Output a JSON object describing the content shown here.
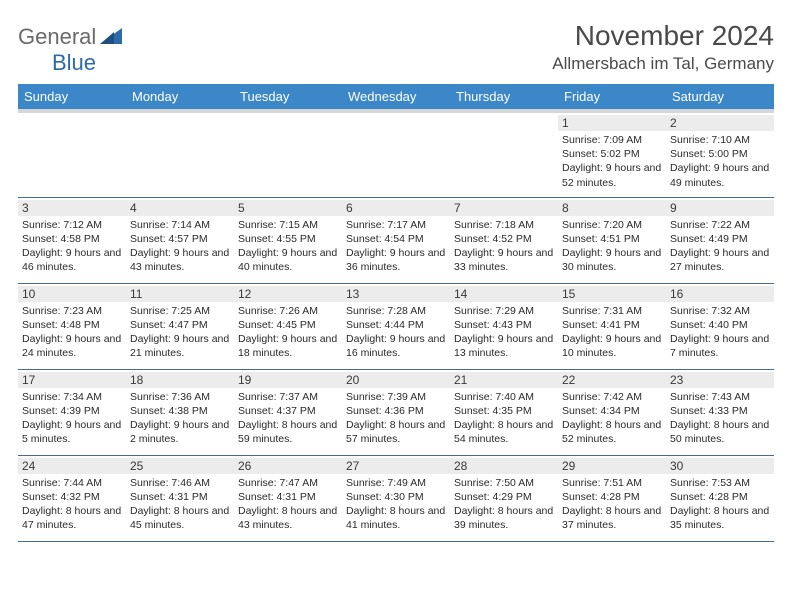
{
  "logo": {
    "word1": "General",
    "word2": "Blue",
    "word1_color": "#6a6a6a",
    "word2_color": "#2f6aa8",
    "shape_color": "#2f6aa8"
  },
  "title": "November 2024",
  "location": "Allmersbach im Tal, Germany",
  "colors": {
    "header_bg": "#3b87c8",
    "header_text": "#ffffff",
    "spacer_bg": "#d6d6d6",
    "daynum_bg": "#ececec",
    "row_border": "#4a6a8a"
  },
  "day_names": [
    "Sunday",
    "Monday",
    "Tuesday",
    "Wednesday",
    "Thursday",
    "Friday",
    "Saturday"
  ],
  "weeks": [
    [
      {
        "n": "",
        "sr": "",
        "ss": "",
        "dl": ""
      },
      {
        "n": "",
        "sr": "",
        "ss": "",
        "dl": ""
      },
      {
        "n": "",
        "sr": "",
        "ss": "",
        "dl": ""
      },
      {
        "n": "",
        "sr": "",
        "ss": "",
        "dl": ""
      },
      {
        "n": "",
        "sr": "",
        "ss": "",
        "dl": ""
      },
      {
        "n": "1",
        "sr": "Sunrise: 7:09 AM",
        "ss": "Sunset: 5:02 PM",
        "dl": "Daylight: 9 hours and 52 minutes."
      },
      {
        "n": "2",
        "sr": "Sunrise: 7:10 AM",
        "ss": "Sunset: 5:00 PM",
        "dl": "Daylight: 9 hours and 49 minutes."
      }
    ],
    [
      {
        "n": "3",
        "sr": "Sunrise: 7:12 AM",
        "ss": "Sunset: 4:58 PM",
        "dl": "Daylight: 9 hours and 46 minutes."
      },
      {
        "n": "4",
        "sr": "Sunrise: 7:14 AM",
        "ss": "Sunset: 4:57 PM",
        "dl": "Daylight: 9 hours and 43 minutes."
      },
      {
        "n": "5",
        "sr": "Sunrise: 7:15 AM",
        "ss": "Sunset: 4:55 PM",
        "dl": "Daylight: 9 hours and 40 minutes."
      },
      {
        "n": "6",
        "sr": "Sunrise: 7:17 AM",
        "ss": "Sunset: 4:54 PM",
        "dl": "Daylight: 9 hours and 36 minutes."
      },
      {
        "n": "7",
        "sr": "Sunrise: 7:18 AM",
        "ss": "Sunset: 4:52 PM",
        "dl": "Daylight: 9 hours and 33 minutes."
      },
      {
        "n": "8",
        "sr": "Sunrise: 7:20 AM",
        "ss": "Sunset: 4:51 PM",
        "dl": "Daylight: 9 hours and 30 minutes."
      },
      {
        "n": "9",
        "sr": "Sunrise: 7:22 AM",
        "ss": "Sunset: 4:49 PM",
        "dl": "Daylight: 9 hours and 27 minutes."
      }
    ],
    [
      {
        "n": "10",
        "sr": "Sunrise: 7:23 AM",
        "ss": "Sunset: 4:48 PM",
        "dl": "Daylight: 9 hours and 24 minutes."
      },
      {
        "n": "11",
        "sr": "Sunrise: 7:25 AM",
        "ss": "Sunset: 4:47 PM",
        "dl": "Daylight: 9 hours and 21 minutes."
      },
      {
        "n": "12",
        "sr": "Sunrise: 7:26 AM",
        "ss": "Sunset: 4:45 PM",
        "dl": "Daylight: 9 hours and 18 minutes."
      },
      {
        "n": "13",
        "sr": "Sunrise: 7:28 AM",
        "ss": "Sunset: 4:44 PM",
        "dl": "Daylight: 9 hours and 16 minutes."
      },
      {
        "n": "14",
        "sr": "Sunrise: 7:29 AM",
        "ss": "Sunset: 4:43 PM",
        "dl": "Daylight: 9 hours and 13 minutes."
      },
      {
        "n": "15",
        "sr": "Sunrise: 7:31 AM",
        "ss": "Sunset: 4:41 PM",
        "dl": "Daylight: 9 hours and 10 minutes."
      },
      {
        "n": "16",
        "sr": "Sunrise: 7:32 AM",
        "ss": "Sunset: 4:40 PM",
        "dl": "Daylight: 9 hours and 7 minutes."
      }
    ],
    [
      {
        "n": "17",
        "sr": "Sunrise: 7:34 AM",
        "ss": "Sunset: 4:39 PM",
        "dl": "Daylight: 9 hours and 5 minutes."
      },
      {
        "n": "18",
        "sr": "Sunrise: 7:36 AM",
        "ss": "Sunset: 4:38 PM",
        "dl": "Daylight: 9 hours and 2 minutes."
      },
      {
        "n": "19",
        "sr": "Sunrise: 7:37 AM",
        "ss": "Sunset: 4:37 PM",
        "dl": "Daylight: 8 hours and 59 minutes."
      },
      {
        "n": "20",
        "sr": "Sunrise: 7:39 AM",
        "ss": "Sunset: 4:36 PM",
        "dl": "Daylight: 8 hours and 57 minutes."
      },
      {
        "n": "21",
        "sr": "Sunrise: 7:40 AM",
        "ss": "Sunset: 4:35 PM",
        "dl": "Daylight: 8 hours and 54 minutes."
      },
      {
        "n": "22",
        "sr": "Sunrise: 7:42 AM",
        "ss": "Sunset: 4:34 PM",
        "dl": "Daylight: 8 hours and 52 minutes."
      },
      {
        "n": "23",
        "sr": "Sunrise: 7:43 AM",
        "ss": "Sunset: 4:33 PM",
        "dl": "Daylight: 8 hours and 50 minutes."
      }
    ],
    [
      {
        "n": "24",
        "sr": "Sunrise: 7:44 AM",
        "ss": "Sunset: 4:32 PM",
        "dl": "Daylight: 8 hours and 47 minutes."
      },
      {
        "n": "25",
        "sr": "Sunrise: 7:46 AM",
        "ss": "Sunset: 4:31 PM",
        "dl": "Daylight: 8 hours and 45 minutes."
      },
      {
        "n": "26",
        "sr": "Sunrise: 7:47 AM",
        "ss": "Sunset: 4:31 PM",
        "dl": "Daylight: 8 hours and 43 minutes."
      },
      {
        "n": "27",
        "sr": "Sunrise: 7:49 AM",
        "ss": "Sunset: 4:30 PM",
        "dl": "Daylight: 8 hours and 41 minutes."
      },
      {
        "n": "28",
        "sr": "Sunrise: 7:50 AM",
        "ss": "Sunset: 4:29 PM",
        "dl": "Daylight: 8 hours and 39 minutes."
      },
      {
        "n": "29",
        "sr": "Sunrise: 7:51 AM",
        "ss": "Sunset: 4:28 PM",
        "dl": "Daylight: 8 hours and 37 minutes."
      },
      {
        "n": "30",
        "sr": "Sunrise: 7:53 AM",
        "ss": "Sunset: 4:28 PM",
        "dl": "Daylight: 8 hours and 35 minutes."
      }
    ]
  ]
}
